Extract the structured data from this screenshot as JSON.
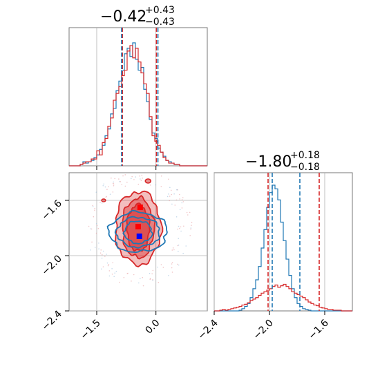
{
  "chart_data": {
    "type": "corner",
    "colors": {
      "red": "#d62728",
      "blue": "#1f77b4",
      "grid": "#b0b0b0",
      "axis": "#777777"
    },
    "param1": {
      "title": {
        "median": "−0.42",
        "plus": "+0.43",
        "minus": "−0.43"
      },
      "range": [
        -2.2,
        1.3
      ],
      "ticks": [
        {
          "value": -1.5,
          "label": "−1.5"
        },
        {
          "value": 0.0,
          "label": "0.0"
        }
      ],
      "quantiles_red": [
        -0.85,
        0.01
      ],
      "quantiles_blue": [
        -0.87,
        0.05
      ],
      "hist_start": -2.2,
      "hist_step": 0.07,
      "hist_red": [
        0,
        0,
        0,
        0,
        1,
        2,
        3,
        3,
        5,
        5,
        11,
        8,
        17,
        20,
        29,
        35,
        48,
        53,
        58,
        66,
        70,
        84,
        88,
        79,
        86,
        76,
        68,
        60,
        53,
        36,
        22,
        18,
        15,
        10,
        6,
        4,
        2,
        2,
        1,
        1,
        0,
        0,
        0,
        0,
        0,
        0,
        0,
        0,
        0,
        0
      ],
      "hist_blue": [
        0,
        0,
        0,
        0,
        1,
        3,
        2,
        3,
        4,
        6,
        8,
        12,
        15,
        22,
        27,
        38,
        42,
        55,
        62,
        70,
        82,
        86,
        80,
        90,
        78,
        70,
        72,
        56,
        47,
        34,
        24,
        20,
        13,
        10,
        7,
        4,
        3,
        2,
        1,
        1,
        0,
        0,
        0,
        0,
        0,
        0,
        0,
        0,
        0,
        0
      ]
    },
    "param2": {
      "title": {
        "median": "−1.80",
        "plus": "+0.18",
        "minus": "−0.18"
      },
      "range": [
        -2.4,
        -1.4
      ],
      "ticks": [
        {
          "value": -2.4,
          "label": "−2.4"
        },
        {
          "value": -2.0,
          "label": "−2.0"
        },
        {
          "value": -1.6,
          "label": "−1.6"
        }
      ],
      "quantiles_red": [
        -2.01,
        -1.64
      ],
      "quantiles_blue": [
        -1.98,
        -1.78
      ],
      "hist_start": -2.4,
      "hist_step": 0.02,
      "hist_red": [
        0,
        0,
        1,
        2,
        1,
        2,
        3,
        4,
        5,
        6,
        8,
        9,
        11,
        14,
        16,
        18,
        21,
        24,
        26,
        28,
        30,
        33,
        35,
        32,
        34,
        36,
        33,
        30,
        26,
        24,
        22,
        20,
        18,
        15,
        12,
        10,
        8,
        7,
        5,
        4,
        3,
        2,
        2,
        1,
        1,
        1,
        0,
        0,
        0,
        0
      ],
      "hist_blue": [
        0,
        0,
        0,
        0,
        0,
        0,
        0,
        0,
        0,
        1,
        3,
        6,
        10,
        18,
        30,
        42,
        60,
        85,
        110,
        140,
        160,
        170,
        165,
        150,
        120,
        95,
        70,
        48,
        30,
        18,
        10,
        6,
        3,
        2,
        1,
        0,
        0,
        0,
        0,
        0,
        0,
        0,
        0,
        0,
        0,
        0,
        0,
        0,
        0,
        0
      ]
    },
    "joint": {
      "red_medians": [
        {
          "x": -0.42,
          "y": -1.8
        }
      ],
      "red_points": [
        {
          "x": -0.4,
          "y": -1.65
        },
        {
          "x": -0.45,
          "y": -1.79
        }
      ],
      "blue_points": [
        {
          "x": -0.42,
          "y": -1.86
        }
      ],
      "red_contours": [
        {
          "cx": -0.45,
          "cy": -1.8,
          "rx": 1.05,
          "ry": 0.33,
          "fill": 0.55
        },
        {
          "cx": -0.45,
          "cy": -1.8,
          "rx": 0.73,
          "ry": 0.27,
          "fill": 0.75
        },
        {
          "cx": -0.45,
          "cy": -1.8,
          "rx": 0.52,
          "ry": 0.21,
          "fill": 0.95
        }
      ],
      "blue_contours": [
        {
          "cx": -0.45,
          "cy": -1.83,
          "rx": 1.05,
          "ry": 0.16
        },
        {
          "cx": -0.45,
          "cy": -1.83,
          "rx": 0.78,
          "ry": 0.12
        },
        {
          "cx": -0.45,
          "cy": -1.83,
          "rx": 0.5,
          "ry": 0.09
        }
      ]
    }
  }
}
